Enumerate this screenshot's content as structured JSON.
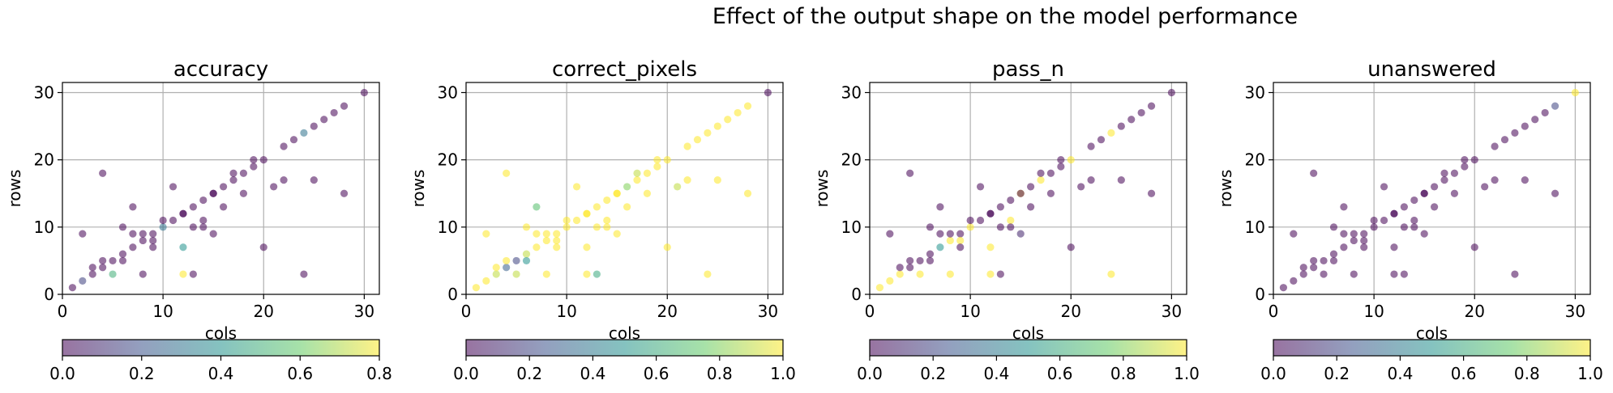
{
  "figure": {
    "suptitle": "Effect of the output shape on the model performance"
  },
  "colormap": {
    "name": "viridis",
    "alpha": 0.55,
    "stops": [
      "#440154",
      "#3b528b",
      "#21918c",
      "#5ec962",
      "#fde725"
    ]
  },
  "chart_data": [
    {
      "type": "scatter",
      "title": "accuracy",
      "xlabel": "cols",
      "ylabel": "rows",
      "xlim": [
        0,
        31.5
      ],
      "ylim": [
        0,
        31.5
      ],
      "xticks": [
        0,
        10,
        20,
        30
      ],
      "yticks": [
        0,
        10,
        20,
        30
      ],
      "grid": true,
      "colorbar": {
        "min": 0.0,
        "max": 0.8,
        "ticks": [
          0.0,
          0.2,
          0.4,
          0.6,
          0.8
        ],
        "tick_labels": [
          "0.0",
          "0.2",
          "0.4",
          "0.6",
          "0.8"
        ]
      },
      "points": [
        [
          1,
          1,
          0.0
        ],
        [
          2,
          2,
          0.15
        ],
        [
          3,
          3,
          0.0
        ],
        [
          4,
          4,
          0.0
        ],
        [
          5,
          5,
          0.0
        ],
        [
          6,
          6,
          0.0
        ],
        [
          7,
          7,
          0.0
        ],
        [
          8,
          8,
          0.0
        ],
        [
          9,
          9,
          0.0
        ],
        [
          10,
          10,
          0.3
        ],
        [
          11,
          11,
          0.0
        ],
        [
          12,
          12,
          0.0
        ],
        [
          13,
          13,
          0.0
        ],
        [
          14,
          14,
          0.0
        ],
        [
          15,
          15,
          0.0
        ],
        [
          16,
          16,
          0.0
        ],
        [
          17,
          17,
          0.0
        ],
        [
          18,
          18,
          0.0
        ],
        [
          19,
          19,
          0.0
        ],
        [
          20,
          20,
          0.0
        ],
        [
          22,
          22,
          0.0
        ],
        [
          23,
          23,
          0.0
        ],
        [
          24,
          24,
          0.3
        ],
        [
          25,
          25,
          0.0
        ],
        [
          26,
          26,
          0.0
        ],
        [
          27,
          27,
          0.0
        ],
        [
          28,
          28,
          0.0
        ],
        [
          30,
          30,
          0.0
        ],
        [
          2,
          9,
          0.0
        ],
        [
          4,
          18,
          0.0
        ],
        [
          7,
          13,
          0.0
        ],
        [
          11,
          16,
          0.0
        ],
        [
          8,
          3,
          0.0
        ],
        [
          9,
          8,
          0.0
        ],
        [
          12,
          7,
          0.4
        ],
        [
          12,
          3,
          0.8
        ],
        [
          13,
          3,
          0.0
        ],
        [
          15,
          9,
          0.0
        ],
        [
          18,
          15,
          0.0
        ],
        [
          20,
          7,
          0.0
        ],
        [
          21,
          16,
          0.0
        ],
        [
          22,
          17,
          0.0
        ],
        [
          24,
          3,
          0.0
        ],
        [
          25,
          17,
          0.0
        ],
        [
          28,
          15,
          0.0
        ],
        [
          5,
          3,
          0.5
        ],
        [
          3,
          4,
          0.0
        ],
        [
          6,
          10,
          0.0
        ],
        [
          7,
          9,
          0.0
        ],
        [
          14,
          11,
          0.0
        ],
        [
          16,
          13,
          0.0
        ],
        [
          12,
          12,
          0.0
        ],
        [
          15,
          15,
          0.0
        ],
        [
          17,
          18,
          0.0
        ],
        [
          9,
          7,
          0.0
        ],
        [
          4,
          5,
          0.0
        ],
        [
          6,
          5,
          0.0
        ],
        [
          8,
          9,
          0.0
        ],
        [
          10,
          11,
          0.0
        ],
        [
          19,
          20,
          0.0
        ],
        [
          14,
          10,
          0.0
        ],
        [
          13,
          10,
          0.0
        ]
      ]
    },
    {
      "type": "scatter",
      "title": "correct_pixels",
      "xlabel": "cols",
      "ylabel": "rows",
      "xlim": [
        0,
        31.5
      ],
      "ylim": [
        0,
        31.5
      ],
      "xticks": [
        0,
        10,
        20,
        30
      ],
      "yticks": [
        0,
        10,
        20,
        30
      ],
      "grid": true,
      "colorbar": {
        "min": 0.0,
        "max": 1.0,
        "ticks": [
          0.0,
          0.2,
          0.4,
          0.6,
          0.8,
          1.0
        ],
        "tick_labels": [
          "0.0",
          "0.2",
          "0.4",
          "0.6",
          "0.8",
          "1.0"
        ]
      },
      "points": [
        [
          1,
          1,
          1.0
        ],
        [
          2,
          2,
          1.0
        ],
        [
          3,
          3,
          0.9
        ],
        [
          4,
          4,
          0.3
        ],
        [
          5,
          5,
          0.2
        ],
        [
          6,
          6,
          0.9
        ],
        [
          7,
          7,
          1.0
        ],
        [
          8,
          8,
          1.0
        ],
        [
          9,
          9,
          1.0
        ],
        [
          10,
          10,
          1.0
        ],
        [
          11,
          11,
          1.0
        ],
        [
          12,
          12,
          1.0
        ],
        [
          13,
          13,
          1.0
        ],
        [
          14,
          14,
          1.0
        ],
        [
          15,
          15,
          1.0
        ],
        [
          16,
          16,
          0.8
        ],
        [
          17,
          17,
          1.0
        ],
        [
          18,
          18,
          1.0
        ],
        [
          19,
          19,
          1.0
        ],
        [
          20,
          20,
          1.0
        ],
        [
          22,
          22,
          1.0
        ],
        [
          23,
          23,
          1.0
        ],
        [
          24,
          24,
          1.0
        ],
        [
          25,
          25,
          1.0
        ],
        [
          26,
          26,
          1.0
        ],
        [
          27,
          27,
          1.0
        ],
        [
          28,
          28,
          1.0
        ],
        [
          30,
          30,
          0.0
        ],
        [
          2,
          9,
          1.0
        ],
        [
          4,
          18,
          1.0
        ],
        [
          7,
          13,
          0.7
        ],
        [
          11,
          16,
          1.0
        ],
        [
          8,
          3,
          1.0
        ],
        [
          9,
          8,
          1.0
        ],
        [
          12,
          7,
          1.0
        ],
        [
          12,
          3,
          1.0
        ],
        [
          13,
          3,
          0.6
        ],
        [
          15,
          9,
          1.0
        ],
        [
          18,
          15,
          1.0
        ],
        [
          20,
          7,
          1.0
        ],
        [
          21,
          16,
          0.9
        ],
        [
          22,
          17,
          1.0
        ],
        [
          24,
          3,
          1.0
        ],
        [
          25,
          17,
          1.0
        ],
        [
          28,
          15,
          1.0
        ],
        [
          5,
          3,
          0.9
        ],
        [
          3,
          4,
          1.0
        ],
        [
          6,
          10,
          1.0
        ],
        [
          7,
          9,
          1.0
        ],
        [
          14,
          11,
          1.0
        ],
        [
          16,
          13,
          1.0
        ],
        [
          12,
          12,
          1.0
        ],
        [
          15,
          15,
          1.0
        ],
        [
          17,
          18,
          0.9
        ],
        [
          9,
          7,
          1.0
        ],
        [
          4,
          5,
          1.0
        ],
        [
          6,
          5,
          0.5
        ],
        [
          8,
          9,
          1.0
        ],
        [
          10,
          11,
          1.0
        ],
        [
          19,
          20,
          1.0
        ],
        [
          14,
          10,
          1.0
        ],
        [
          13,
          10,
          1.0
        ]
      ]
    },
    {
      "type": "scatter",
      "title": "pass_n",
      "xlabel": "cols",
      "ylabel": "rows",
      "xlim": [
        0,
        31.5
      ],
      "ylim": [
        0,
        31.5
      ],
      "xticks": [
        0,
        10,
        20,
        30
      ],
      "yticks": [
        0,
        10,
        20,
        30
      ],
      "grid": true,
      "colorbar": {
        "min": 0.0,
        "max": 1.0,
        "ticks": [
          0.0,
          0.2,
          0.4,
          0.6,
          0.8,
          1.0
        ],
        "tick_labels": [
          "0.0",
          "0.2",
          "0.4",
          "0.6",
          "0.8",
          "1.0"
        ]
      },
      "points": [
        [
          1,
          1,
          1.0
        ],
        [
          2,
          2,
          1.0
        ],
        [
          3,
          3,
          1.0
        ],
        [
          4,
          4,
          0.0
        ],
        [
          5,
          5,
          0.0
        ],
        [
          6,
          6,
          0.0
        ],
        [
          7,
          7,
          0.5
        ],
        [
          8,
          8,
          1.0
        ],
        [
          9,
          9,
          0.0
        ],
        [
          10,
          10,
          1.0
        ],
        [
          11,
          11,
          0.0
        ],
        [
          12,
          12,
          0.0
        ],
        [
          13,
          13,
          0.0
        ],
        [
          14,
          14,
          0.0
        ],
        [
          15,
          15,
          1.0
        ],
        [
          16,
          16,
          0.0
        ],
        [
          17,
          17,
          1.0
        ],
        [
          18,
          18,
          0.0
        ],
        [
          19,
          19,
          0.0
        ],
        [
          20,
          20,
          1.0
        ],
        [
          22,
          22,
          0.0
        ],
        [
          23,
          23,
          0.0
        ],
        [
          24,
          24,
          1.0
        ],
        [
          25,
          25,
          0.0
        ],
        [
          26,
          26,
          0.0
        ],
        [
          27,
          27,
          0.0
        ],
        [
          28,
          28,
          0.0
        ],
        [
          30,
          30,
          0.0
        ],
        [
          2,
          9,
          0.0
        ],
        [
          4,
          18,
          0.0
        ],
        [
          7,
          13,
          0.0
        ],
        [
          11,
          16,
          0.0
        ],
        [
          8,
          3,
          1.0
        ],
        [
          9,
          8,
          1.0
        ],
        [
          12,
          7,
          1.0
        ],
        [
          12,
          3,
          1.0
        ],
        [
          13,
          3,
          0.0
        ],
        [
          15,
          9,
          0.1
        ],
        [
          18,
          15,
          0.0
        ],
        [
          20,
          7,
          0.0
        ],
        [
          21,
          16,
          0.0
        ],
        [
          22,
          17,
          0.0
        ],
        [
          24,
          3,
          1.0
        ],
        [
          25,
          17,
          0.0
        ],
        [
          28,
          15,
          0.0
        ],
        [
          5,
          3,
          1.0
        ],
        [
          3,
          4,
          0.0
        ],
        [
          6,
          10,
          0.0
        ],
        [
          7,
          9,
          0.0
        ],
        [
          14,
          11,
          1.0
        ],
        [
          16,
          13,
          0.0
        ],
        [
          12,
          12,
          0.0
        ],
        [
          15,
          15,
          0.0
        ],
        [
          17,
          18,
          0.0
        ],
        [
          9,
          7,
          0.0
        ],
        [
          4,
          5,
          0.0
        ],
        [
          6,
          5,
          0.0
        ],
        [
          8,
          9,
          0.0
        ],
        [
          10,
          11,
          0.0
        ],
        [
          19,
          20,
          0.0
        ],
        [
          14,
          10,
          0.0
        ],
        [
          13,
          10,
          0.0
        ]
      ]
    },
    {
      "type": "scatter",
      "title": "unanswered",
      "xlabel": "cols",
      "ylabel": "rows",
      "xlim": [
        0,
        31.5
      ],
      "ylim": [
        0,
        31.5
      ],
      "xticks": [
        0,
        10,
        20,
        30
      ],
      "yticks": [
        0,
        10,
        20,
        30
      ],
      "grid": true,
      "colorbar": {
        "min": 0.0,
        "max": 1.0,
        "ticks": [
          0.0,
          0.2,
          0.4,
          0.6,
          0.8,
          1.0
        ],
        "tick_labels": [
          "0.0",
          "0.2",
          "0.4",
          "0.6",
          "0.8",
          "1.0"
        ]
      },
      "points": [
        [
          1,
          1,
          0.0
        ],
        [
          2,
          2,
          0.0
        ],
        [
          3,
          3,
          0.0
        ],
        [
          4,
          4,
          0.0
        ],
        [
          5,
          5,
          0.0
        ],
        [
          6,
          6,
          0.0
        ],
        [
          7,
          7,
          0.0
        ],
        [
          8,
          8,
          0.0
        ],
        [
          9,
          9,
          0.0
        ],
        [
          10,
          10,
          0.0
        ],
        [
          11,
          11,
          0.0
        ],
        [
          12,
          12,
          0.0
        ],
        [
          13,
          13,
          0.0
        ],
        [
          14,
          14,
          0.0
        ],
        [
          15,
          15,
          0.0
        ],
        [
          16,
          16,
          0.0
        ],
        [
          17,
          17,
          0.0
        ],
        [
          18,
          18,
          0.0
        ],
        [
          19,
          19,
          0.0
        ],
        [
          20,
          20,
          0.0
        ],
        [
          22,
          22,
          0.0
        ],
        [
          23,
          23,
          0.0
        ],
        [
          24,
          24,
          0.0
        ],
        [
          25,
          25,
          0.0
        ],
        [
          26,
          26,
          0.0
        ],
        [
          27,
          27,
          0.0
        ],
        [
          28,
          28,
          0.2
        ],
        [
          30,
          30,
          1.0
        ],
        [
          2,
          9,
          0.0
        ],
        [
          4,
          18,
          0.0
        ],
        [
          7,
          13,
          0.0
        ],
        [
          11,
          16,
          0.0
        ],
        [
          8,
          3,
          0.0
        ],
        [
          9,
          8,
          0.0
        ],
        [
          12,
          7,
          0.0
        ],
        [
          12,
          3,
          0.0
        ],
        [
          13,
          3,
          0.0
        ],
        [
          15,
          9,
          0.0
        ],
        [
          18,
          15,
          0.0
        ],
        [
          20,
          7,
          0.0
        ],
        [
          21,
          16,
          0.0
        ],
        [
          22,
          17,
          0.0
        ],
        [
          24,
          3,
          0.0
        ],
        [
          25,
          17,
          0.0
        ],
        [
          28,
          15,
          0.0
        ],
        [
          5,
          3,
          0.0
        ],
        [
          3,
          4,
          0.0
        ],
        [
          6,
          10,
          0.0
        ],
        [
          7,
          9,
          0.0
        ],
        [
          14,
          11,
          0.0
        ],
        [
          16,
          13,
          0.0
        ],
        [
          12,
          12,
          0.0
        ],
        [
          15,
          15,
          0.0
        ],
        [
          17,
          18,
          0.0
        ],
        [
          9,
          7,
          0.0
        ],
        [
          4,
          5,
          0.0
        ],
        [
          6,
          5,
          0.0
        ],
        [
          8,
          9,
          0.0
        ],
        [
          10,
          11,
          0.0
        ],
        [
          19,
          20,
          0.0
        ],
        [
          14,
          10,
          0.0
        ],
        [
          13,
          10,
          0.0
        ]
      ]
    }
  ]
}
